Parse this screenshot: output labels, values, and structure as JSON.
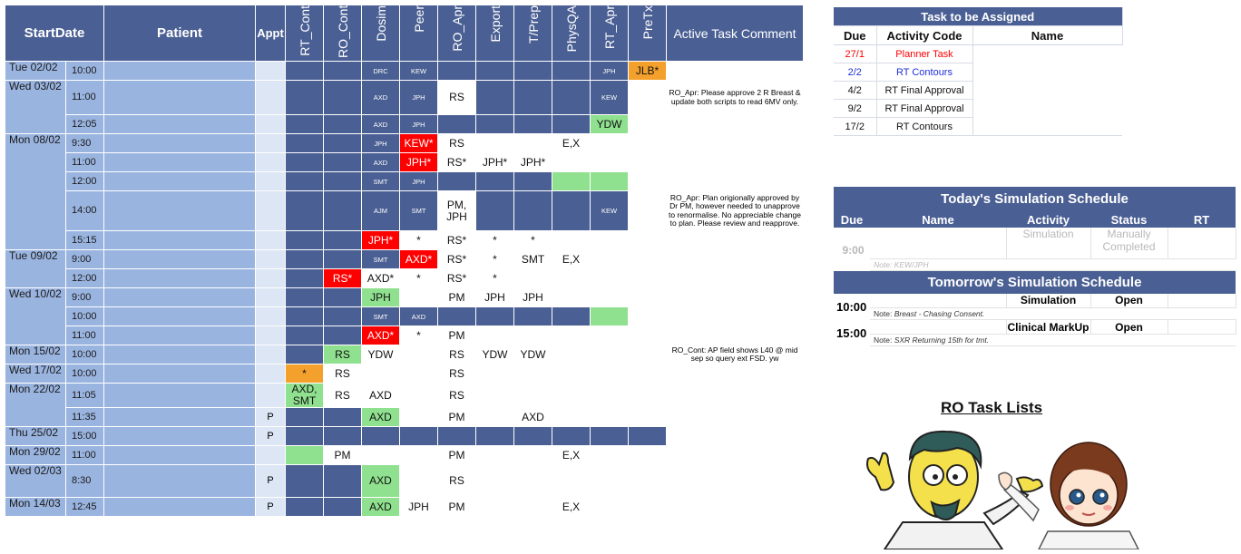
{
  "grid": {
    "headers": {
      "start_date": "StartDate",
      "patient": "Patient",
      "appt": "Appt",
      "rt_cont": "RT_Cont",
      "ro_cont": "RO_Cont",
      "dosim": "Dosim",
      "peer": "Peer",
      "ro_apr": "RO_Apr",
      "export": "Export",
      "t_prep": "T/Prep",
      "physqa": "PhysQA",
      "rt_apr": "RT_Apr",
      "pretx": "PreTx",
      "comment": "Active Task Comment"
    },
    "rows": [
      {
        "date": "Tue 02/02",
        "time": "10:00",
        "appt": "",
        "rt_cont": "",
        "ro_cont": "",
        "dosim": "DRC",
        "peer": "KEW",
        "ro_apr": "",
        "export": "",
        "t_prep": "",
        "physqa": "",
        "rt_apr": "JPH",
        "pretx": "JLB*",
        "comment": ""
      },
      {
        "date": "Wed 03/02",
        "time": "11:00",
        "appt": "",
        "rt_cont": "",
        "ro_cont": "",
        "dosim": "AXD",
        "peer": "JPH",
        "ro_apr": "RS",
        "export": "",
        "t_prep": "",
        "physqa": "",
        "rt_apr": "KEW",
        "pretx": "",
        "comment": "RO_Apr: Please approve 2 R Breast & update both scripts to read 6MV only."
      },
      {
        "date": "",
        "time": "12:05",
        "appt": "",
        "rt_cont": "",
        "ro_cont": "",
        "dosim": "AXD",
        "peer": "JPH",
        "ro_apr": "",
        "export": "",
        "t_prep": "",
        "physqa": "",
        "rt_apr": "YDW",
        "pretx": "",
        "comment": ""
      },
      {
        "date": "Mon 08/02",
        "time": "9:30",
        "appt": "",
        "rt_cont": "",
        "ro_cont": "",
        "dosim": "JPH",
        "peer": "KEW*",
        "ro_apr": "RS",
        "export": "",
        "t_prep": "",
        "physqa": "E,X",
        "rt_apr": "",
        "pretx": "",
        "comment": ""
      },
      {
        "date": "",
        "time": "11:00",
        "appt": "",
        "rt_cont": "",
        "ro_cont": "",
        "dosim": "AXD",
        "peer": "JPH*",
        "ro_apr": "RS*",
        "export": "JPH*",
        "t_prep": "JPH*",
        "physqa": "",
        "rt_apr": "",
        "pretx": "",
        "comment": ""
      },
      {
        "date": "",
        "time": "12:00",
        "appt": "",
        "rt_cont": "",
        "ro_cont": "",
        "dosim": "SMT",
        "peer": "JPH",
        "ro_apr": "",
        "export": "",
        "t_prep": "",
        "physqa": "",
        "rt_apr": "",
        "pretx": "",
        "comment": ""
      },
      {
        "date": "",
        "time": "14:00",
        "appt": "",
        "rt_cont": "",
        "ro_cont": "",
        "dosim": "AJM",
        "peer": "SMT",
        "ro_apr": "PM, JPH",
        "export": "",
        "t_prep": "",
        "physqa": "",
        "rt_apr": "KEW",
        "pretx": "",
        "comment": "RO_Apr: Plan origionally approved by Dr PM, however needed to unapprove to renormalise. No appreciable change to plan. Please review and reapprove."
      },
      {
        "date": "",
        "time": "15:15",
        "appt": "",
        "rt_cont": "",
        "ro_cont": "",
        "dosim": "JPH*",
        "peer": "*",
        "ro_apr": "RS*",
        "export": "*",
        "t_prep": "*",
        "physqa": "",
        "rt_apr": "",
        "pretx": "",
        "comment": ""
      },
      {
        "date": "Tue 09/02",
        "time": "9:00",
        "appt": "",
        "rt_cont": "",
        "ro_cont": "",
        "dosim": "SMT",
        "peer": "AXD*",
        "ro_apr": "RS*",
        "export": "*",
        "t_prep": "SMT",
        "physqa": "E,X",
        "rt_apr": "",
        "pretx": "",
        "comment": ""
      },
      {
        "date": "",
        "time": "12:00",
        "appt": "",
        "rt_cont": "",
        "ro_cont": "RS*",
        "dosim": "AXD*",
        "peer": "*",
        "ro_apr": "RS*",
        "export": "*",
        "t_prep": "",
        "physqa": "",
        "rt_apr": "",
        "pretx": "",
        "comment": ""
      },
      {
        "date": "Wed 10/02",
        "time": "9:00",
        "appt": "",
        "rt_cont": "",
        "ro_cont": "",
        "dosim": "JPH",
        "peer": "",
        "ro_apr": "PM",
        "export": "JPH",
        "t_prep": "JPH",
        "physqa": "",
        "rt_apr": "",
        "pretx": "",
        "comment": ""
      },
      {
        "date": "",
        "time": "10:00",
        "appt": "",
        "rt_cont": "",
        "ro_cont": "",
        "dosim": "SMT",
        "peer": "AXD",
        "ro_apr": "",
        "export": "",
        "t_prep": "",
        "physqa": "",
        "rt_apr": "",
        "pretx": "",
        "comment": ""
      },
      {
        "date": "",
        "time": "11:00",
        "appt": "",
        "rt_cont": "",
        "ro_cont": "",
        "dosim": "AXD*",
        "peer": "*",
        "ro_apr": "PM",
        "export": "",
        "t_prep": "",
        "physqa": "",
        "rt_apr": "",
        "pretx": "",
        "comment": ""
      },
      {
        "date": "Mon 15/02",
        "time": "10:00",
        "appt": "",
        "rt_cont": "",
        "ro_cont": "RS",
        "dosim": "YDW",
        "peer": "",
        "ro_apr": "RS",
        "export": "YDW",
        "t_prep": "YDW",
        "physqa": "",
        "rt_apr": "",
        "pretx": "",
        "comment": "RO_Cont: AP field shows L40 @ mid sep so query ext FSD. yw"
      },
      {
        "date": "Wed 17/02",
        "time": "10:00",
        "appt": "",
        "rt_cont": "*",
        "ro_cont": "RS",
        "dosim": "",
        "peer": "",
        "ro_apr": "RS",
        "export": "",
        "t_prep": "",
        "physqa": "",
        "rt_apr": "",
        "pretx": "",
        "comment": ""
      },
      {
        "date": "Mon 22/02",
        "time": "11:05",
        "appt": "",
        "rt_cont": "AXD, SMT",
        "ro_cont": "RS",
        "dosim": "AXD",
        "peer": "",
        "ro_apr": "RS",
        "export": "",
        "t_prep": "",
        "physqa": "",
        "rt_apr": "",
        "pretx": "",
        "comment": ""
      },
      {
        "date": "",
        "time": "11:35",
        "appt": "P",
        "rt_cont": "",
        "ro_cont": "",
        "dosim": "AXD",
        "peer": "",
        "ro_apr": "PM",
        "export": "",
        "t_prep": "AXD",
        "physqa": "",
        "rt_apr": "",
        "pretx": "",
        "comment": ""
      },
      {
        "date": "Thu 25/02",
        "time": "15:00",
        "appt": "P",
        "rt_cont": "",
        "ro_cont": "",
        "dosim": "",
        "peer": "",
        "ro_apr": "",
        "export": "",
        "t_prep": "",
        "physqa": "",
        "rt_apr": "",
        "pretx": "",
        "comment": ""
      },
      {
        "date": "Mon 29/02",
        "time": "11:00",
        "appt": "",
        "rt_cont": "",
        "ro_cont": "PM",
        "dosim": "",
        "peer": "",
        "ro_apr": "PM",
        "export": "",
        "t_prep": "",
        "physqa": "E,X",
        "rt_apr": "",
        "pretx": "",
        "comment": ""
      },
      {
        "date": "Wed 02/03",
        "time": "8:30",
        "appt": "P",
        "rt_cont": "",
        "ro_cont": "",
        "dosim": "AXD",
        "peer": "",
        "ro_apr": "RS",
        "export": "",
        "t_prep": "",
        "physqa": "",
        "rt_apr": "",
        "pretx": "",
        "comment": ""
      },
      {
        "date": "Mon 14/03",
        "time": "12:45",
        "appt": "P",
        "rt_cont": "",
        "ro_cont": "",
        "dosim": "AXD",
        "peer": "JPH",
        "ro_apr": "PM",
        "export": "",
        "t_prep": "",
        "physqa": "E,X",
        "rt_apr": "",
        "pretx": "",
        "comment": ""
      }
    ]
  },
  "assign": {
    "title": "Task to be Assigned",
    "headers": {
      "due": "Due",
      "code": "Activity Code",
      "name": "Name"
    },
    "rows": [
      {
        "due": "27/1",
        "code": "Planner Task",
        "color": "#ff0000"
      },
      {
        "due": "2/2",
        "code": "RT Contours",
        "color": "#1f2fd8"
      },
      {
        "due": "4/2",
        "code": "RT Final Approval",
        "color": "#111111"
      },
      {
        "due": "9/2",
        "code": "RT Final Approval",
        "color": "#111111"
      },
      {
        "due": "17/2",
        "code": "RT Contours",
        "color": "#111111"
      }
    ]
  },
  "sim": {
    "today_title": "Today's Simulation Schedule",
    "headers": {
      "due": "Due",
      "name": "Name",
      "activity": "Activity",
      "status": "Status",
      "rt": "RT"
    },
    "today": {
      "due": "9:00",
      "activity": "Simulation",
      "status": "Manually Completed",
      "note": "Note: KEW/JPH"
    },
    "tomorrow_title": "Tomorrow's Simulation Schedule",
    "tomorrow": [
      {
        "due": "10:00",
        "activity": "Simulation",
        "status": "Open",
        "note_label": "Note: ",
        "note": "Breast - Chasing Consent."
      },
      {
        "due": "15:00",
        "activity": "Clinical MarkUp",
        "status": "Open",
        "note_label": "Note: ",
        "note": "SXR Returning 15th for tmt."
      }
    ]
  },
  "ro_tasks_title": "RO Task Lists",
  "colors": {
    "header_blue": "#4a5f93",
    "date_blue": "#9ab4e0",
    "red": "#ff0000",
    "green": "#8fe08f",
    "orange": "#f4a02c"
  }
}
